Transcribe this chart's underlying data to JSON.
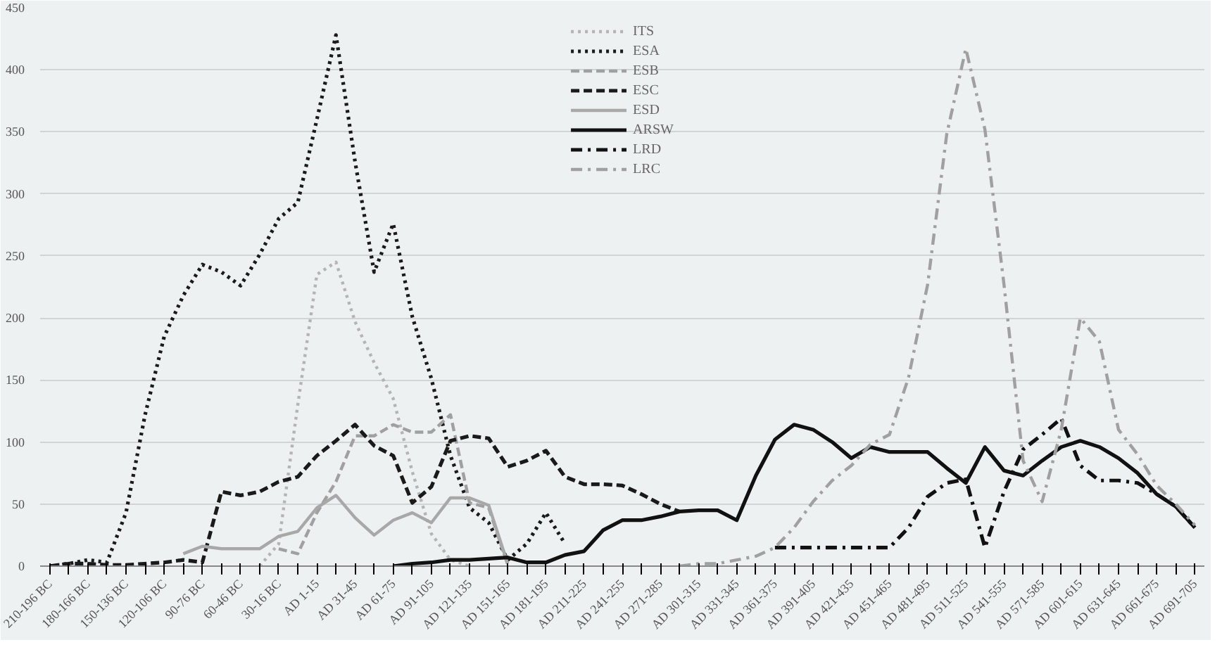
{
  "chart_data": {
    "type": "line",
    "categories": [
      "210-196 BC",
      null,
      "180-166 BC",
      null,
      "150-136 BC",
      null,
      "120-106 BC",
      null,
      "90-76 BC",
      null,
      "60-46 BC",
      null,
      "30-16 BC",
      null,
      "AD 1-15",
      null,
      "AD 31-45",
      null,
      "AD 61-75",
      null,
      "AD 91-105",
      null,
      "AD 121-135",
      null,
      "AD 151-165",
      null,
      "AD 181-195",
      null,
      "AD 211-225",
      null,
      "AD 241-255",
      null,
      "AD 271-285",
      null,
      "AD 301-315",
      null,
      "AD 331-345",
      null,
      "AD 361-375",
      null,
      "AD 391-405",
      null,
      "AD 421-435",
      null,
      "AD 451-465",
      null,
      "AD 481-495",
      null,
      "AD 511-525",
      null,
      "AD 541-555",
      null,
      "AD 571-585",
      null,
      "AD 601-615",
      null,
      "AD 631-645",
      null,
      "AD 661-675",
      null,
      "AD 691-705"
    ],
    "ylim": [
      0,
      450
    ],
    "yticks": [
      0,
      50,
      100,
      150,
      200,
      250,
      300,
      350,
      400,
      450
    ],
    "grid": "y",
    "legend": "top",
    "marker": "none",
    "series": [
      {
        "name": "ITS",
        "color": "#b4b4b4",
        "line_style": "dotted",
        "values": [
          null,
          null,
          null,
          null,
          null,
          null,
          null,
          null,
          null,
          null,
          null,
          0,
          18,
          130,
          235,
          245,
          197,
          164,
          135,
          76,
          26,
          5,
          0,
          null,
          null,
          null,
          null,
          null,
          null,
          null,
          null,
          null,
          null,
          null,
          null,
          null,
          null,
          null,
          null,
          null,
          null,
          null,
          null,
          null,
          null,
          null,
          null,
          null,
          null,
          null,
          null,
          null,
          null,
          null,
          null,
          null,
          null,
          null,
          null,
          null,
          null
        ]
      },
      {
        "name": "ESA",
        "color": "#1a1a1a",
        "line_style": "dotted",
        "values": [
          0,
          2,
          5,
          3,
          43,
          122,
          185,
          218,
          243,
          237,
          226,
          251,
          280,
          293,
          360,
          428,
          326,
          237,
          276,
          201,
          151,
          89,
          47,
          35,
          5,
          18,
          43,
          18,
          null,
          null,
          null,
          null,
          null,
          null,
          null,
          null,
          null,
          null,
          null,
          null,
          null,
          null,
          null,
          null,
          null,
          null,
          null,
          null,
          null,
          null,
          null,
          null,
          null,
          null,
          null,
          null,
          null,
          null,
          null,
          null,
          null
        ]
      },
      {
        "name": "ESB",
        "color": "#a0a0a0",
        "line_style": "dashed",
        "values": [
          null,
          null,
          null,
          null,
          null,
          null,
          null,
          null,
          null,
          null,
          null,
          null,
          14,
          10,
          43,
          68,
          105,
          105,
          114,
          108,
          108,
          122,
          51,
          47,
          1,
          null,
          null,
          null,
          null,
          null,
          null,
          null,
          null,
          null,
          null,
          null,
          null,
          null,
          null,
          null,
          null,
          null,
          null,
          null,
          null,
          null,
          null,
          null,
          null,
          null,
          null,
          null,
          null,
          null,
          null,
          null,
          null,
          null,
          null,
          null,
          null
        ]
      },
      {
        "name": "ESC",
        "color": "#1a1a1a",
        "line_style": "dashed",
        "values": [
          0,
          2,
          2,
          1,
          1,
          2,
          3,
          5,
          3,
          60,
          57,
          60,
          68,
          72,
          89,
          101,
          114,
          97,
          89,
          51,
          64,
          101,
          105,
          103,
          80,
          85,
          93,
          72,
          66,
          66,
          65,
          58,
          50,
          44,
          null,
          null,
          null,
          null,
          null,
          null,
          null,
          null,
          null,
          null,
          null,
          null,
          null,
          null,
          null,
          null,
          null,
          null,
          null,
          null,
          null,
          null,
          null,
          null,
          null,
          null,
          null
        ]
      },
      {
        "name": "ESD",
        "color": "#a8a8a8",
        "line_style": "solid",
        "values": [
          null,
          null,
          null,
          null,
          null,
          null,
          null,
          10,
          16,
          14,
          14,
          14,
          24,
          28,
          47,
          57,
          39,
          25,
          37,
          43,
          35,
          55,
          55,
          49,
          2,
          null,
          null,
          null,
          null,
          null,
          null,
          null,
          null,
          null,
          null,
          null,
          null,
          null,
          null,
          null,
          null,
          null,
          null,
          null,
          null,
          null,
          null,
          null,
          null,
          null,
          null,
          null,
          null,
          null,
          null,
          null,
          null,
          null,
          null,
          null,
          null
        ]
      },
      {
        "name": "ARSW",
        "color": "#111111",
        "line_style": "solid",
        "values": [
          null,
          null,
          null,
          null,
          null,
          null,
          null,
          null,
          null,
          null,
          null,
          null,
          null,
          null,
          null,
          null,
          null,
          null,
          0,
          2,
          3,
          5,
          5,
          6,
          7,
          3,
          3,
          9,
          12,
          29,
          37,
          37,
          40,
          44,
          45,
          45,
          37,
          73,
          102,
          114,
          110,
          100,
          87,
          96,
          92,
          92,
          92,
          79,
          67,
          96,
          77,
          73,
          85,
          96,
          101,
          96,
          87,
          75,
          58,
          48,
          31
        ]
      },
      {
        "name": "LRD",
        "color": "#111111",
        "line_style": "dashdot",
        "values": [
          null,
          null,
          null,
          null,
          null,
          null,
          null,
          null,
          null,
          null,
          null,
          null,
          null,
          null,
          null,
          null,
          null,
          null,
          null,
          null,
          null,
          null,
          null,
          null,
          null,
          null,
          null,
          null,
          null,
          null,
          null,
          null,
          null,
          null,
          null,
          null,
          null,
          null,
          15,
          15,
          15,
          15,
          15,
          15,
          15,
          31,
          56,
          67,
          70,
          15,
          60,
          94,
          106,
          119,
          81,
          69,
          69,
          67,
          58,
          48,
          31
        ]
      },
      {
        "name": "LRC",
        "color": "#a0a0a0",
        "line_style": "dashdot",
        "values": [
          null,
          null,
          null,
          null,
          null,
          null,
          null,
          null,
          null,
          null,
          null,
          null,
          null,
          null,
          null,
          null,
          null,
          null,
          null,
          null,
          null,
          null,
          null,
          null,
          null,
          null,
          null,
          null,
          null,
          null,
          null,
          null,
          null,
          0,
          2,
          2,
          5,
          8,
          15,
          31,
          52,
          69,
          81,
          98,
          106,
          152,
          227,
          348,
          417,
          352,
          227,
          85,
          52,
          110,
          200,
          181,
          110,
          90,
          65,
          50,
          33
        ]
      }
    ]
  }
}
